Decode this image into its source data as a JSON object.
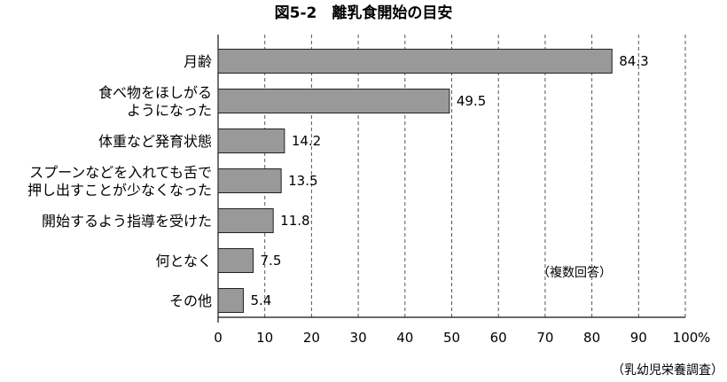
{
  "chart_data": {
    "type": "bar",
    "orientation": "horizontal",
    "title": "図5-2　離乳食開始の目安",
    "categories": [
      [
        "月齢"
      ],
      [
        "食べ物をほしがる",
        "ようになった"
      ],
      [
        "体重など発育状態"
      ],
      [
        "スプーンなどを入れても舌で",
        "押し出すことが少なくなった"
      ],
      [
        "開始するよう指導を受けた"
      ],
      [
        "何となく"
      ],
      [
        "その他"
      ]
    ],
    "values": [
      84.3,
      49.5,
      14.2,
      13.5,
      11.8,
      7.5,
      5.4
    ],
    "value_labels": [
      "84.3",
      "49.5",
      "14.2",
      "13.5",
      "11.8",
      "7.5",
      "5.4"
    ],
    "xlim": [
      0,
      100
    ],
    "xticks": [
      0,
      10,
      20,
      30,
      40,
      50,
      60,
      70,
      80,
      90,
      100
    ],
    "xtick_labels": [
      "0",
      "10",
      "20",
      "30",
      "40",
      "50",
      "60",
      "70",
      "80",
      "90",
      "100"
    ],
    "x_unit": "%",
    "grid": "vertical dashed",
    "annotation": "（複数回答）",
    "source": "（乳幼児栄養調査）",
    "bar_color": "#999999",
    "bar_edge_color": "#222222"
  }
}
